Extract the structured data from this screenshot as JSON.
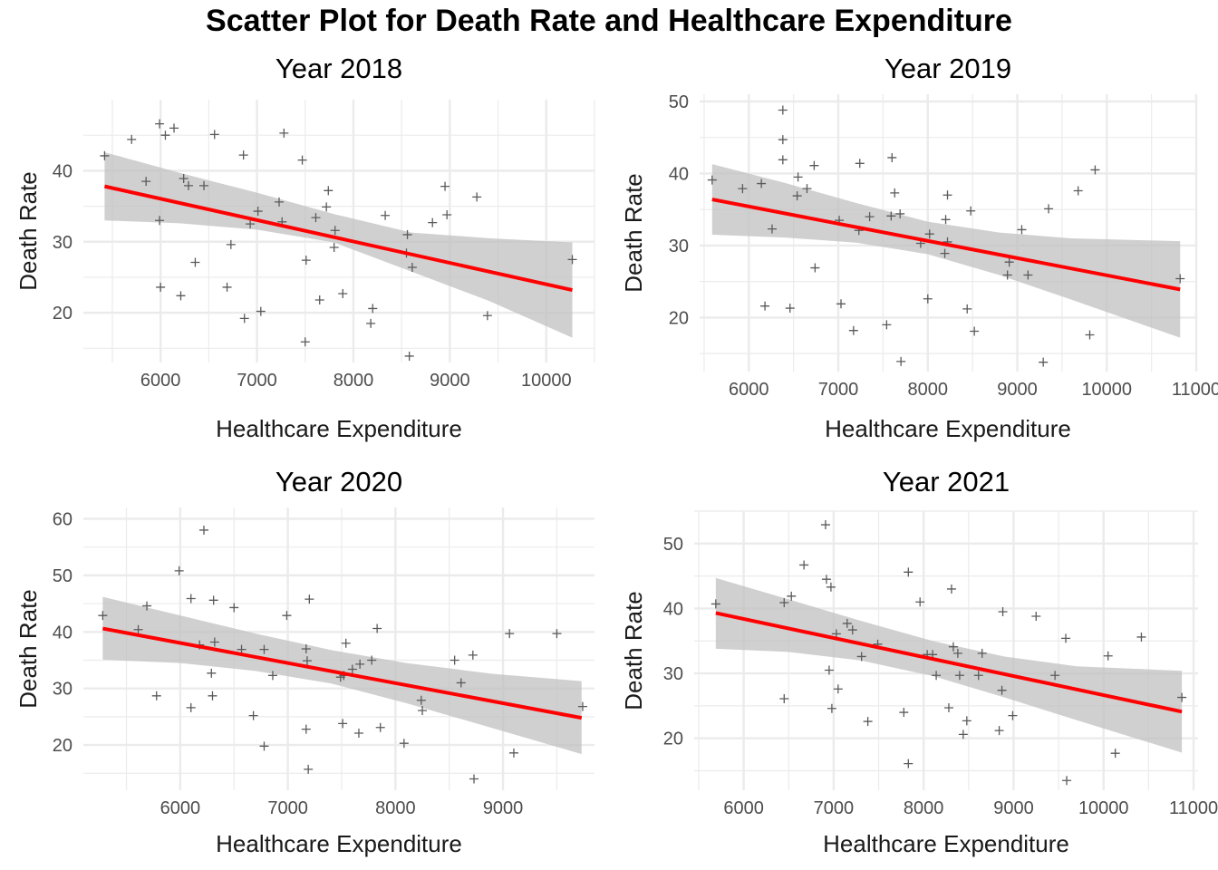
{
  "figure": {
    "title": "Scatter Plot for Death Rate and Healthcare Expenditure"
  },
  "colors": {
    "fit_line": "#ff0000",
    "ribbon": "#bebebe",
    "points": "#5a5a5a"
  },
  "chart_data": [
    {
      "type": "scatter",
      "title": "Year 2018",
      "xlabel": "Healthcare Expenditure",
      "ylabel": "Death Rate",
      "xlim": [
        5200,
        10500
      ],
      "ylim": [
        13,
        50
      ],
      "xticks": [
        6000,
        7000,
        8000,
        9000,
        10000
      ],
      "xtick_labels": [
        "6000",
        "7000",
        "8000",
        "9000",
        "10000"
      ],
      "yticks": [
        20,
        30,
        40
      ],
      "ytick_labels": [
        "20",
        "30",
        "40"
      ],
      "grid": true,
      "fit": {
        "x0": 5420,
        "y0": 37.8,
        "x1": 10270,
        "y1": 23.2
      },
      "band_upper": [
        [
          5420,
          42.6
        ],
        [
          6200,
          39.7
        ],
        [
          7000,
          36.9
        ],
        [
          7800,
          33.9
        ],
        [
          8600,
          31.3
        ],
        [
          9400,
          30.5
        ],
        [
          10270,
          29.9
        ]
      ],
      "band_lower": [
        [
          5420,
          33.0
        ],
        [
          6200,
          32.6
        ],
        [
          7000,
          31.7
        ],
        [
          7800,
          29.9
        ],
        [
          8600,
          25.8
        ],
        [
          9400,
          21.7
        ],
        [
          10270,
          16.5
        ]
      ],
      "points": [
        [
          5420,
          42.1
        ],
        [
          5700,
          44.4
        ],
        [
          5850,
          38.5
        ],
        [
          5990,
          46.6
        ],
        [
          6050,
          45.0
        ],
        [
          6140,
          46.0
        ],
        [
          5990,
          33.0
        ],
        [
          6000,
          23.6
        ],
        [
          6210,
          22.4
        ],
        [
          6240,
          38.9
        ],
        [
          6290,
          37.9
        ],
        [
          6360,
          27.1
        ],
        [
          6450,
          37.9
        ],
        [
          6560,
          45.1
        ],
        [
          6690,
          23.6
        ],
        [
          6730,
          29.6
        ],
        [
          6860,
          42.2
        ],
        [
          6870,
          19.2
        ],
        [
          6930,
          32.5
        ],
        [
          7010,
          34.3
        ],
        [
          7040,
          20.2
        ],
        [
          7230,
          35.6
        ],
        [
          7260,
          32.8
        ],
        [
          7280,
          45.3
        ],
        [
          7470,
          41.5
        ],
        [
          7510,
          27.4
        ],
        [
          7500,
          15.9
        ],
        [
          7610,
          33.4
        ],
        [
          7650,
          21.8
        ],
        [
          7720,
          34.9
        ],
        [
          7740,
          37.2
        ],
        [
          7800,
          29.2
        ],
        [
          7810,
          31.6
        ],
        [
          7890,
          22.7
        ],
        [
          8180,
          18.5
        ],
        [
          8200,
          20.6
        ],
        [
          8330,
          33.7
        ],
        [
          8550,
          28.4
        ],
        [
          8560,
          31.0
        ],
        [
          8580,
          13.9
        ],
        [
          8610,
          26.4
        ],
        [
          8820,
          32.7
        ],
        [
          8950,
          37.8
        ],
        [
          8970,
          33.8
        ],
        [
          9280,
          36.3
        ],
        [
          9390,
          19.6
        ],
        [
          10270,
          27.5
        ]
      ]
    },
    {
      "type": "scatter",
      "title": "Year 2019",
      "xlabel": "Healthcare Expenditure",
      "ylabel": "Death Rate",
      "xlim": [
        5450,
        11000
      ],
      "ylim": [
        12.5,
        51
      ],
      "xticks": [
        6000,
        7000,
        8000,
        9000,
        10000,
        11000
      ],
      "xtick_labels": [
        "6000",
        "7000",
        "8000",
        "9000",
        "10000",
        "11000"
      ],
      "yticks": [
        20,
        30,
        40,
        50
      ],
      "ytick_labels": [
        "20",
        "30",
        "40",
        "50"
      ],
      "grid": true,
      "fit": {
        "x0": 5590,
        "y0": 36.4,
        "x1": 10820,
        "y1": 23.9
      },
      "band_upper": [
        [
          5590,
          41.3
        ],
        [
          6400,
          38.7
        ],
        [
          7200,
          35.9
        ],
        [
          8000,
          33.3
        ],
        [
          8800,
          31.8
        ],
        [
          9600,
          31.0
        ],
        [
          10820,
          30.6
        ]
      ],
      "band_lower": [
        [
          5590,
          31.5
        ],
        [
          6400,
          31.1
        ],
        [
          7200,
          30.4
        ],
        [
          8000,
          28.8
        ],
        [
          8800,
          25.9
        ],
        [
          9600,
          22.5
        ],
        [
          10820,
          17.2
        ]
      ],
      "points": [
        [
          5590,
          39.1
        ],
        [
          5930,
          37.9
        ],
        [
          6140,
          38.6
        ],
        [
          6180,
          21.6
        ],
        [
          6260,
          32.3
        ],
        [
          6380,
          48.8
        ],
        [
          6380,
          44.7
        ],
        [
          6380,
          41.9
        ],
        [
          6460,
          21.3
        ],
        [
          6540,
          36.9
        ],
        [
          6550,
          39.5
        ],
        [
          6650,
          37.9
        ],
        [
          6740,
          26.9
        ],
        [
          6730,
          41.1
        ],
        [
          7010,
          33.5
        ],
        [
          7030,
          21.9
        ],
        [
          7170,
          18.2
        ],
        [
          7230,
          32.1
        ],
        [
          7240,
          41.4
        ],
        [
          7350,
          34.0
        ],
        [
          7540,
          19.0
        ],
        [
          7590,
          34.1
        ],
        [
          7600,
          42.2
        ],
        [
          7630,
          37.3
        ],
        [
          7690,
          34.4
        ],
        [
          7700,
          13.9
        ],
        [
          7920,
          30.3
        ],
        [
          8000,
          22.6
        ],
        [
          8020,
          31.6
        ],
        [
          8190,
          28.9
        ],
        [
          8200,
          33.6
        ],
        [
          8220,
          37.0
        ],
        [
          8220,
          30.5
        ],
        [
          8440,
          21.2
        ],
        [
          8480,
          34.8
        ],
        [
          8520,
          18.1
        ],
        [
          8890,
          25.9
        ],
        [
          8910,
          27.7
        ],
        [
          9050,
          32.2
        ],
        [
          9120,
          25.9
        ],
        [
          9290,
          13.8
        ],
        [
          9350,
          35.1
        ],
        [
          9680,
          37.6
        ],
        [
          9810,
          17.6
        ],
        [
          9870,
          40.5
        ],
        [
          10820,
          25.4
        ]
      ]
    },
    {
      "type": "scatter",
      "title": "Year 2020",
      "xlabel": "Healthcare Expenditure",
      "ylabel": "Death Rate",
      "xlim": [
        5100,
        9850
      ],
      "ylim": [
        12,
        62
      ],
      "xticks": [
        6000,
        7000,
        8000,
        9000
      ],
      "xtick_labels": [
        "6000",
        "7000",
        "8000",
        "9000"
      ],
      "yticks": [
        20,
        30,
        40,
        50,
        60
      ],
      "ytick_labels": [
        "20",
        "30",
        "40",
        "50",
        "60"
      ],
      "grid": true,
      "fit": {
        "x0": 5280,
        "y0": 40.6,
        "x1": 9730,
        "y1": 24.8
      },
      "band_upper": [
        [
          5280,
          46.2
        ],
        [
          6000,
          42.9
        ],
        [
          6700,
          39.7
        ],
        [
          7400,
          36.8
        ],
        [
          8100,
          34.5
        ],
        [
          8900,
          32.6
        ],
        [
          9730,
          31.3
        ]
      ],
      "band_lower": [
        [
          5280,
          35.1
        ],
        [
          6000,
          34.5
        ],
        [
          6700,
          33.1
        ],
        [
          7400,
          30.9
        ],
        [
          8100,
          27.4
        ],
        [
          8900,
          23.0
        ],
        [
          9730,
          18.4
        ]
      ],
      "points": [
        [
          5280,
          42.9
        ],
        [
          5610,
          40.4
        ],
        [
          5690,
          44.6
        ],
        [
          5780,
          28.7
        ],
        [
          5990,
          50.8
        ],
        [
          6100,
          45.9
        ],
        [
          6100,
          26.6
        ],
        [
          6180,
          37.7
        ],
        [
          6220,
          58.0
        ],
        [
          6290,
          32.7
        ],
        [
          6300,
          28.7
        ],
        [
          6310,
          45.6
        ],
        [
          6320,
          38.2
        ],
        [
          6500,
          44.3
        ],
        [
          6570,
          36.9
        ],
        [
          6680,
          25.2
        ],
        [
          6780,
          36.9
        ],
        [
          6780,
          19.8
        ],
        [
          6860,
          32.3
        ],
        [
          6990,
          42.9
        ],
        [
          7170,
          37.0
        ],
        [
          7170,
          22.8
        ],
        [
          7180,
          34.9
        ],
        [
          7190,
          15.7
        ],
        [
          7200,
          45.8
        ],
        [
          7490,
          32.0
        ],
        [
          7510,
          23.8
        ],
        [
          7520,
          32.3
        ],
        [
          7540,
          38.0
        ],
        [
          7600,
          33.4
        ],
        [
          7660,
          22.1
        ],
        [
          7670,
          34.3
        ],
        [
          7780,
          35.0
        ],
        [
          7830,
          40.6
        ],
        [
          7860,
          23.1
        ],
        [
          8080,
          20.3
        ],
        [
          8240,
          27.9
        ],
        [
          8250,
          26.1
        ],
        [
          8550,
          35.0
        ],
        [
          8610,
          31.0
        ],
        [
          8720,
          35.9
        ],
        [
          8730,
          14.0
        ],
        [
          9060,
          39.7
        ],
        [
          9100,
          18.6
        ],
        [
          9500,
          39.7
        ],
        [
          9740,
          26.8
        ]
      ]
    },
    {
      "type": "scatter",
      "title": "Year 2021",
      "xlabel": "Healthcare Expenditure",
      "ylabel": "Death Rate",
      "xlim": [
        5450,
        11050
      ],
      "ylim": [
        12,
        55
      ],
      "xticks": [
        6000,
        7000,
        8000,
        9000,
        10000,
        11000
      ],
      "xtick_labels": [
        "6000",
        "7000",
        "8000",
        "9000",
        "10000",
        "11000"
      ],
      "yticks": [
        20,
        30,
        40,
        50
      ],
      "ytick_labels": [
        "20",
        "30",
        "40",
        "50"
      ],
      "grid": true,
      "fit": {
        "x0": 5690,
        "y0": 39.3,
        "x1": 10870,
        "y1": 24.1
      },
      "band_upper": [
        [
          5690,
          44.7
        ],
        [
          6500,
          41.4
        ],
        [
          7300,
          38.1
        ],
        [
          8100,
          35.0
        ],
        [
          8900,
          32.6
        ],
        [
          9700,
          31.1
        ],
        [
          10870,
          30.4
        ]
      ],
      "band_lower": [
        [
          5690,
          33.8
        ],
        [
          6500,
          33.3
        ],
        [
          7300,
          32.0
        ],
        [
          8100,
          29.6
        ],
        [
          8900,
          26.3
        ],
        [
          9700,
          22.8
        ],
        [
          10870,
          17.8
        ]
      ],
      "points": [
        [
          5690,
          40.7
        ],
        [
          6450,
          26.1
        ],
        [
          6450,
          40.9
        ],
        [
          6530,
          41.9
        ],
        [
          6670,
          46.7
        ],
        [
          6910,
          52.9
        ],
        [
          6920,
          44.5
        ],
        [
          6950,
          30.5
        ],
        [
          6970,
          43.3
        ],
        [
          6980,
          24.6
        ],
        [
          7030,
          36.1
        ],
        [
          7050,
          27.6
        ],
        [
          7150,
          37.7
        ],
        [
          7210,
          36.7
        ],
        [
          7310,
          32.6
        ],
        [
          7380,
          22.6
        ],
        [
          7490,
          34.5
        ],
        [
          7780,
          24.0
        ],
        [
          7830,
          16.1
        ],
        [
          7830,
          45.6
        ],
        [
          7960,
          41.0
        ],
        [
          8040,
          32.9
        ],
        [
          8100,
          32.9
        ],
        [
          8140,
          29.7
        ],
        [
          8280,
          24.7
        ],
        [
          8310,
          43.0
        ],
        [
          8330,
          34.1
        ],
        [
          8380,
          33.1
        ],
        [
          8400,
          29.7
        ],
        [
          8440,
          20.6
        ],
        [
          8480,
          22.7
        ],
        [
          8610,
          29.7
        ],
        [
          8650,
          33.1
        ],
        [
          8840,
          21.2
        ],
        [
          8870,
          27.4
        ],
        [
          8880,
          39.5
        ],
        [
          8990,
          23.5
        ],
        [
          9250,
          38.8
        ],
        [
          9460,
          29.7
        ],
        [
          9590,
          13.5
        ],
        [
          9580,
          35.4
        ],
        [
          10050,
          32.7
        ],
        [
          10130,
          17.7
        ],
        [
          10420,
          35.6
        ],
        [
          10870,
          26.3
        ]
      ]
    }
  ]
}
